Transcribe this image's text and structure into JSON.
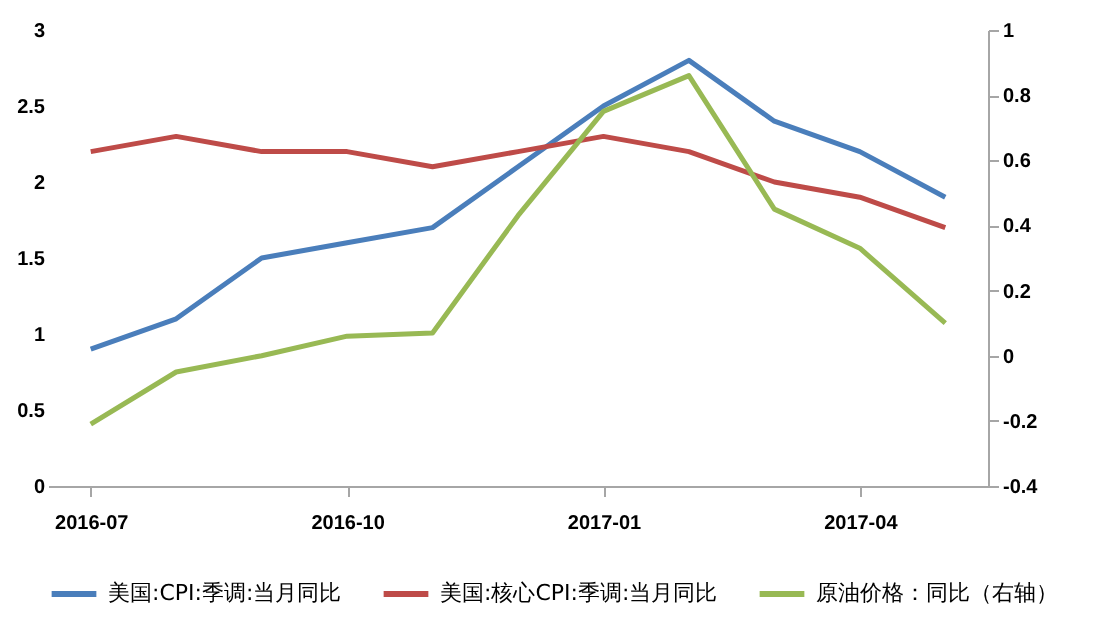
{
  "chart_data": {
    "type": "line",
    "categories": [
      "2016-07",
      null,
      null,
      "2016-10",
      null,
      null,
      "2017-01",
      null,
      null,
      "2017-04",
      null
    ],
    "series": [
      {
        "name": "美国:CPI:季调:当月同比",
        "color": "#4a7ebb",
        "values": [
          0.9,
          1.1,
          1.5,
          1.6,
          1.7,
          2.1,
          2.5,
          2.8,
          2.4,
          2.2,
          1.9
        ]
      },
      {
        "name": "美国:核心CPI:季调:当月同比",
        "color": "#be4b48",
        "values": [
          2.2,
          2.3,
          2.2,
          2.2,
          2.1,
          2.2,
          2.3,
          2.2,
          2.0,
          1.9,
          1.7
        ]
      },
      {
        "name": "原油价格：同比（右轴）",
        "color": "#98b954",
        "axis": "y2",
        "values": [
          -0.21,
          -0.05,
          0.0,
          0.06,
          0.07,
          0.43,
          0.75,
          0.86,
          0.45,
          0.33,
          0.1
        ]
      }
    ],
    "ylim": [
      0,
      3
    ],
    "yticks": [
      0,
      0.5,
      1,
      1.5,
      2,
      2.5,
      3
    ],
    "y2lim": [
      -0.4,
      1
    ],
    "y2ticks": [
      -0.4,
      -0.2,
      0,
      0.2,
      0.4,
      0.6,
      0.8,
      1
    ],
    "grid": false,
    "legend": "bottom",
    "marker": "none",
    "line_style": "solid"
  }
}
